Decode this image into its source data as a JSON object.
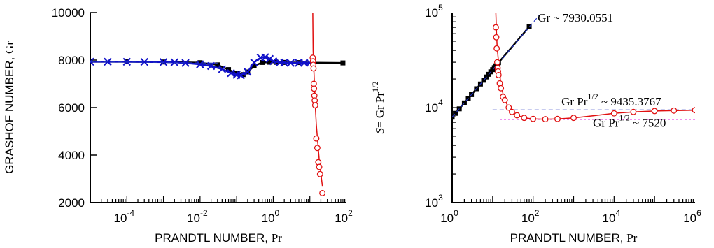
{
  "colors": {
    "black": "#000000",
    "blue": "#1010c8",
    "red": "#e01010",
    "dash_blue": "#2030c0",
    "magenta": "#e020e0"
  },
  "chart_data": [
    {
      "id": "left",
      "type": "line",
      "xscale": "log",
      "xlim": [
        1e-05,
        100
      ],
      "ylim": [
        2000,
        10000
      ],
      "xticks": [
        0.0001,
        0.01,
        1,
        100
      ],
      "xtick_labels": [
        {
          "base": "10",
          "exp": "-4"
        },
        {
          "base": "10",
          "exp": "-2"
        },
        {
          "base": "10",
          "exp": "0"
        },
        {
          "base": "10",
          "exp": "2"
        }
      ],
      "yticks": [
        2000,
        4000,
        6000,
        8000,
        10000
      ],
      "ytick_labels": [
        "2000",
        "4000",
        "6000",
        "8000",
        "10000"
      ],
      "xlabel": {
        "main": "PRANDTL NUMBER, ",
        "sym": "Pr"
      },
      "ylabel": {
        "main": "GRASHOF NUMBER, ",
        "sym": "Gr"
      },
      "series": [
        {
          "style": "black-squares",
          "x": [
            1e-05,
            0.0001,
            0.001,
            0.01,
            0.03,
            0.06,
            0.1,
            0.15,
            0.2,
            0.3,
            0.5,
            0.8,
            1.2,
            2,
            5,
            12,
            80
          ],
          "y": [
            7930,
            7928,
            7920,
            7890,
            7800,
            7600,
            7430,
            7390,
            7500,
            7750,
            7900,
            7910,
            7905,
            7900,
            7895,
            7890,
            7880
          ]
        },
        {
          "style": "blue-crosses",
          "x": [
            1e-05,
            3e-05,
            0.0001,
            0.0003,
            0.001,
            0.002,
            0.004,
            0.01,
            0.02,
            0.04,
            0.07,
            0.1,
            0.13,
            0.2,
            0.3,
            0.45,
            0.6,
            0.8,
            1,
            1.5,
            2,
            3,
            5,
            7,
            10
          ],
          "y": [
            7930,
            7930,
            7928,
            7925,
            7915,
            7905,
            7880,
            7820,
            7750,
            7620,
            7450,
            7380,
            7360,
            7500,
            7900,
            8100,
            8120,
            8050,
            7950,
            7900,
            7890,
            7880,
            7880,
            7880,
            7880
          ]
        },
        {
          "style": "blue-dashed",
          "x": [
            1e-05,
            0.03
          ],
          "y": [
            7930,
            7870
          ]
        },
        {
          "style": "red-line",
          "x": [
            12,
            12.3,
            12.6,
            13,
            13.5,
            14,
            15,
            16.5,
            18,
            20,
            22
          ],
          "y": [
            10000,
            8400,
            7900,
            7400,
            6800,
            6100,
            5300,
            4500,
            3800,
            3200,
            2700
          ]
        },
        {
          "style": "red-circles",
          "x": [
            12,
            12.2,
            12.4,
            12.6,
            12.8,
            13,
            13.3,
            13.6,
            14,
            15,
            16,
            17,
            18,
            19,
            22
          ],
          "y": [
            8100,
            7950,
            7800,
            7650,
            7000,
            6800,
            6500,
            6300,
            6100,
            4700,
            4300,
            3700,
            3500,
            3200,
            2400
          ]
        }
      ],
      "annotations": []
    },
    {
      "id": "right",
      "type": "line",
      "xscale": "log",
      "yscale": "log",
      "xlim": [
        1,
        1000000
      ],
      "ylim": [
        1000,
        100000
      ],
      "xticks": [
        1,
        100,
        10000,
        1000000
      ],
      "xtick_labels": [
        {
          "base": "10",
          "exp": "0"
        },
        {
          "base": "10",
          "exp": "2"
        },
        {
          "base": "10",
          "exp": "4"
        },
        {
          "base": "10",
          "exp": "6"
        }
      ],
      "yticks": [
        1000,
        10000,
        100000
      ],
      "ytick_labels": [
        {
          "base": "10",
          "exp": "3"
        },
        {
          "base": "10",
          "exp": "4"
        },
        {
          "base": "10",
          "exp": "5"
        }
      ],
      "xlabel": {
        "main": "PRANDTL NUMBER, ",
        "sym": "Pr"
      },
      "ylabel": {
        "sym": "S",
        "rest": "= Gr Pr",
        "exp": "1/2"
      },
      "series": [
        {
          "style": "black-squares",
          "x": [
            1,
            1.2,
            1.5,
            2,
            2.5,
            3,
            4,
            5,
            6,
            7,
            8,
            9,
            10,
            11,
            12,
            13,
            14,
            80
          ],
          "y": [
            7930,
            8700,
            9700,
            11200,
            12500,
            13700,
            15800,
            17700,
            19400,
            21000,
            22400,
            23800,
            25100,
            26300,
            27500,
            28600,
            29700,
            71000
          ]
        },
        {
          "style": "blue-dashed",
          "x": [
            1,
            140
          ],
          "y": [
            7930,
            93000
          ]
        },
        {
          "style": "blue-dashed",
          "x": [
            10,
            1000000
          ],
          "y": [
            9435,
            9435
          ]
        },
        {
          "style": "magenta-dotted",
          "x": [
            15,
            1000000
          ],
          "y": [
            7520,
            7520
          ]
        },
        {
          "style": "red-line",
          "x": [
            12,
            12.5,
            13,
            14,
            15,
            16,
            18,
            20,
            25,
            30,
            40,
            60,
            100,
            200,
            400,
            1000,
            3000,
            10000,
            30000,
            100000,
            1000000
          ],
          "y": [
            100000,
            60000,
            42000,
            30000,
            22000,
            18000,
            14000,
            12000,
            10000,
            9000,
            8300,
            7800,
            7600,
            7550,
            7600,
            7800,
            8200,
            8700,
            9000,
            9200,
            9400
          ]
        },
        {
          "style": "red-circles",
          "x": [
            12,
            12.3,
            12.6,
            13,
            13.3,
            13.6,
            14,
            15,
            16,
            18,
            20,
            25,
            30,
            40,
            60,
            100,
            200,
            400,
            1000,
            10000,
            30000,
            100000,
            300000,
            1000000
          ],
          "y": [
            70000,
            55000,
            42000,
            30000,
            26000,
            24000,
            22000,
            18000,
            16000,
            13000,
            12000,
            10000,
            9000,
            8300,
            7800,
            7600,
            7550,
            7600,
            7800,
            8700,
            9000,
            9200,
            9300,
            9400
          ]
        }
      ],
      "annotations": [
        {
          "text": "Gr ~ 7930.0551",
          "x": 130,
          "y": 80000
        },
        {
          "text": "Gr Pr",
          "exp": "1/2",
          "after": " ~ 9435.3767",
          "x": 500,
          "y": 10500
        },
        {
          "text": "Gr Pr",
          "exp": "1/2",
          "after": " ~ 7520",
          "x": 3000,
          "y": 6300
        }
      ]
    }
  ]
}
